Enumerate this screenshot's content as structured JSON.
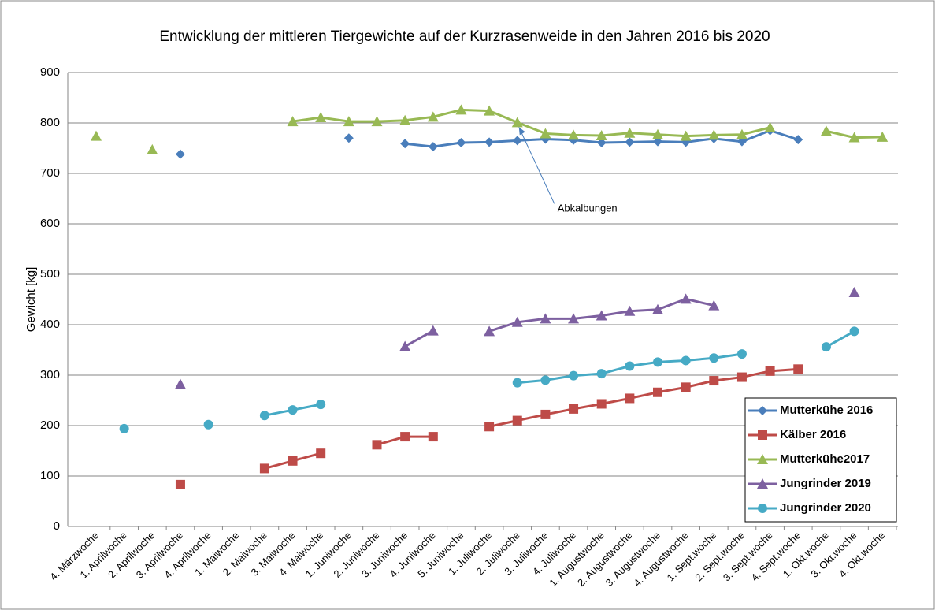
{
  "chart_data": {
    "type": "line",
    "title": "Entwicklung der  mittleren Tiergewichte auf der Kurzrasenweide in den Jahren 2016 bis 2020",
    "ylabel": "Gewicht [kg]",
    "categories": [
      "4. Märzwoche",
      "1. Aprilwoche",
      "2. Aprilwoche",
      "3. Aprilwoche",
      "4. Aprilwoche",
      "1. Maiwoche",
      "2. Maiwoche",
      "3. Maiwoche",
      "4. Maiwoche",
      "1. Juniwoche",
      "2. Juniwoche",
      "3. Juniwoche",
      "4. Juniwoche",
      "5. Juniwoche",
      "1. Juliwoche",
      "2. Juliwoche",
      "3. Juliwoche",
      "4. Juliwoche",
      "1. Augustwoche",
      "2. Augustwoche",
      "3. Augustwoche",
      "4. Augustwoche",
      "1. Sept.woche",
      "2. Sept.woche",
      "3. Sept.woche",
      "4. Sept.woche",
      "1. Okt.woche",
      "3. Okt.woche",
      "4. Okt.woche"
    ],
    "series": [
      {
        "name": "Mutterkühe 2016",
        "color": "#4a7ebb",
        "marker": "diamond",
        "values": [
          null,
          null,
          null,
          738,
          null,
          null,
          null,
          null,
          null,
          770,
          null,
          759,
          753,
          761,
          762,
          765,
          768,
          766,
          761,
          762,
          763,
          762,
          769,
          763,
          785,
          767,
          null,
          null,
          null
        ]
      },
      {
        "name": "Kälber 2016",
        "color": "#be4b48",
        "marker": "square",
        "values": [
          null,
          null,
          null,
          83,
          null,
          null,
          115,
          130,
          145,
          null,
          162,
          178,
          178,
          null,
          198,
          210,
          222,
          233,
          243,
          254,
          266,
          276,
          289,
          296,
          308,
          312,
          null,
          null,
          null
        ]
      },
      {
        "name": "Mutterkühe2017",
        "color": "#98b954",
        "marker": "triangle",
        "values": [
          774,
          null,
          747,
          null,
          null,
          null,
          null,
          803,
          811,
          803,
          803,
          805,
          812,
          826,
          824,
          801,
          779,
          776,
          775,
          780,
          777,
          774,
          776,
          777,
          791,
          null,
          784,
          771,
          772
        ]
      },
      {
        "name": "Jungrinder 2019",
        "color": "#7d60a0",
        "marker": "triangle",
        "values": [
          null,
          null,
          null,
          282,
          null,
          null,
          null,
          null,
          null,
          null,
          null,
          357,
          388,
          null,
          387,
          405,
          412,
          412,
          418,
          427,
          430,
          451,
          438,
          null,
          null,
          null,
          null,
          464,
          null
        ]
      },
      {
        "name": "Jungrinder 2020",
        "color": "#46aac5",
        "marker": "circle",
        "values": [
          null,
          194,
          null,
          null,
          202,
          null,
          220,
          231,
          242,
          null,
          null,
          null,
          null,
          null,
          null,
          285,
          290,
          299,
          303,
          318,
          326,
          329,
          334,
          342,
          null,
          null,
          356,
          387,
          null
        ]
      }
    ],
    "annotations": [
      {
        "text": "Abkalbungen",
        "category": 15,
        "value": 801
      }
    ],
    "ylim": [
      0,
      900
    ],
    "yticks": [
      0,
      100,
      200,
      300,
      400,
      500,
      600,
      700,
      800,
      900
    ],
    "grid": true,
    "legend": "lower right"
  }
}
